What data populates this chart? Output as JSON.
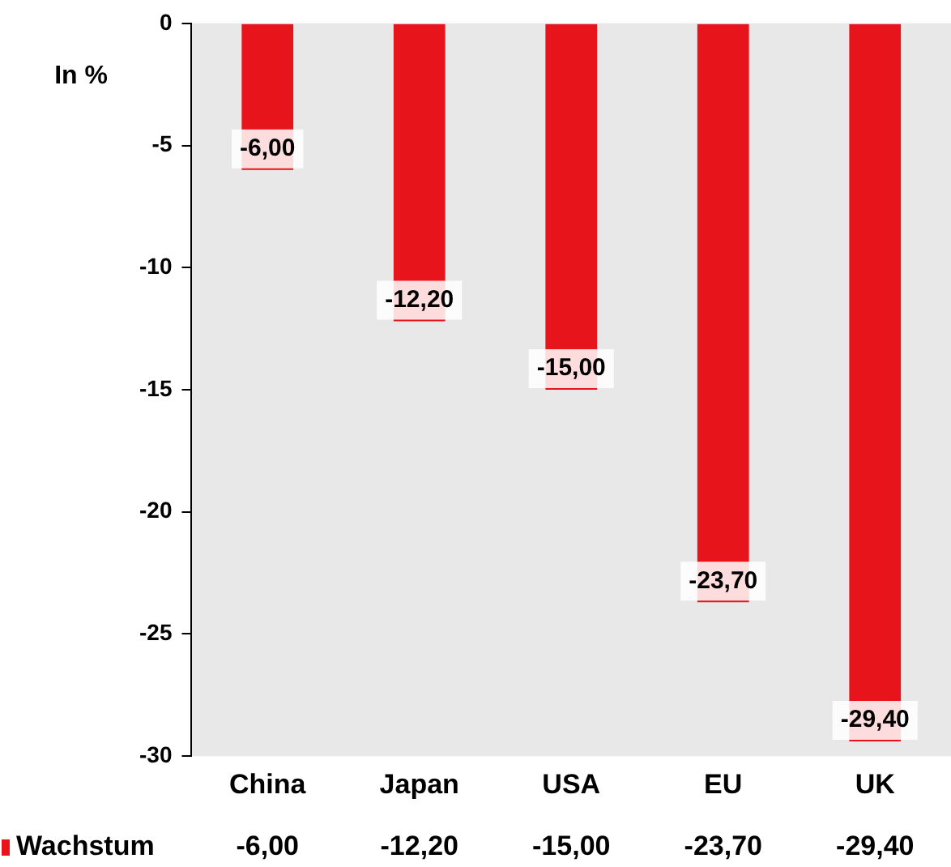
{
  "chart_data": {
    "type": "bar",
    "ylabel": "In %",
    "categories": [
      "China",
      "Japan",
      "USA",
      "EU",
      "UK"
    ],
    "series": [
      {
        "name": "Wachstum",
        "color": "#e8141b",
        "values": [
          -6.0,
          -12.2,
          -15.0,
          -23.7,
          -29.4
        ],
        "value_labels": [
          "-6,00",
          "-12,20",
          "-15,00",
          "-23,70",
          "-29,40"
        ]
      }
    ],
    "ylim": [
      -30,
      0
    ],
    "yticks": [
      0,
      -5,
      -10,
      -15,
      -20,
      -25,
      -30
    ],
    "grid": false,
    "legend": "bottom"
  }
}
